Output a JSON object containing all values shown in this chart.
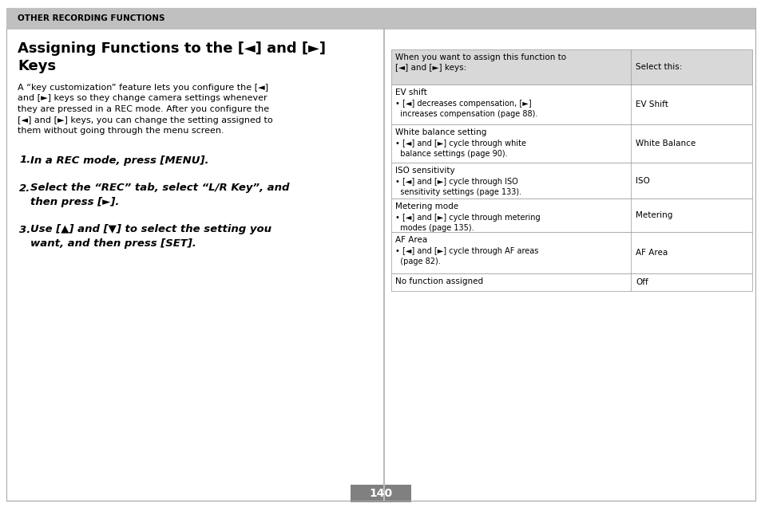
{
  "bg_color": "#ffffff",
  "header_bg": "#c0c0c0",
  "header_text": "OTHER RECORDING FUNCTIONS",
  "header_text_color": "#000000",
  "title_line1": "Assigning Functions to the [◄] and [►]",
  "title_line2": "Keys",
  "body_text": [
    "A “key customization” feature lets you configure the [◄]",
    "and [►] keys so they change camera settings whenever",
    "they are pressed in a REC mode. After you configure the",
    "[◄] and [►] keys, you can change the setting assigned to",
    "them without going through the menu screen."
  ],
  "steps": [
    {
      "num": "1.",
      "text": "In a REC mode, press [MENU]."
    },
    {
      "num": "2.",
      "text": "Select the “REC” tab, select “L/R Key”, and\nthen press [►]."
    },
    {
      "num": "3.",
      "text": "Use [▲] and [▼] to select the setting you\nwant, and then press [SET]."
    }
  ],
  "table_header_col1": "When you want to assign this function to\n[◄] and [►] keys:",
  "table_header_col2": "Select this:",
  "table_header_bg": "#d8d8d8",
  "table_rows": [
    {
      "col1_title": "EV shift",
      "col1_detail": "• [◄] decreases compensation, [►]\n  increases compensation (page 88).",
      "col2": "EV Shift"
    },
    {
      "col1_title": "White balance setting",
      "col1_detail": "• [◄] and [►] cycle through white\n  balance settings (page 90).",
      "col2": "White Balance"
    },
    {
      "col1_title": "ISO sensitivity",
      "col1_detail": "• [◄] and [►] cycle through ISO\n  sensitivity settings (page 133).",
      "col2": "ISO"
    },
    {
      "col1_title": "Metering mode",
      "col1_detail": "• [◄] and [►] cycle through metering\n  modes (page 135).",
      "col2": "Metering"
    },
    {
      "col1_title": "AF Area",
      "col1_detail": "• [◄] and [►] cycle through AF areas\n  (page 82).",
      "col2": "AF Area"
    },
    {
      "col1_title": "No function assigned",
      "col1_detail": "",
      "col2": "Off"
    }
  ],
  "page_number": "140",
  "footer_bg": "#808080",
  "text_color": "#000000",
  "border_color": "#aaaaaa",
  "table_border_color": "#999999"
}
